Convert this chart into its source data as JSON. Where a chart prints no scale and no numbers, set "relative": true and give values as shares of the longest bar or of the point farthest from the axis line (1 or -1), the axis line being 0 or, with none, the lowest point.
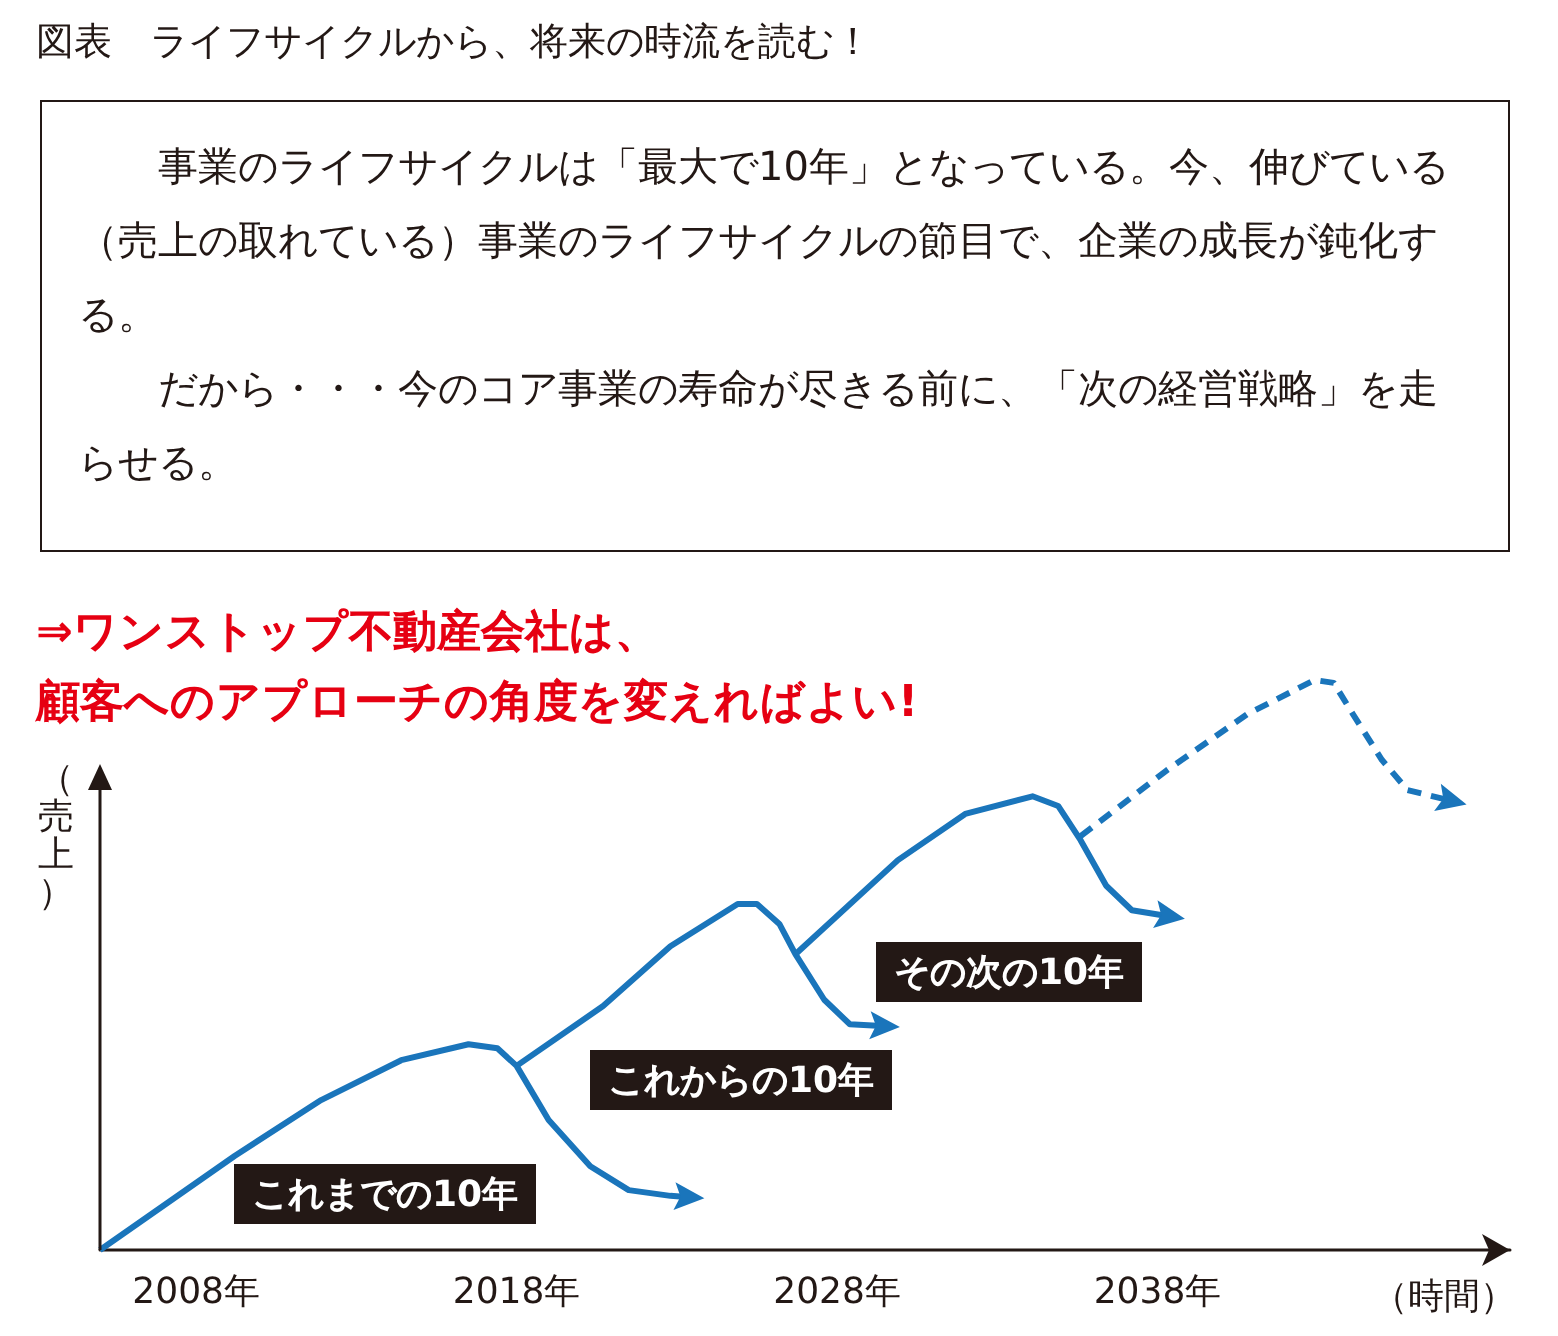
{
  "chart_data": {
    "type": "line",
    "title": "図表　ライフサイクルから、将来の時流を読む！",
    "subtitle": "事業のライフサイクルは「最大で10年」となっている。今、伸びている（売上の取れている）事業のライフサイクルの節目で、企業の成長が鈍化する。",
    "xlabel": "（時間）",
    "ylabel": "（売上）",
    "relative": true,
    "line_style": "solid",
    "xlim": [
      2005,
      2049
    ],
    "xticks": [
      {
        "value": 2008,
        "label": "2008年"
      },
      {
        "value": 2018,
        "label": "2018年"
      },
      {
        "value": 2028,
        "label": "2028年"
      },
      {
        "value": 2038,
        "label": "2038年"
      }
    ],
    "annotations": [
      "だから・・・今のコア事業の寿命が尽きる前に、「次の経営戦略」を走らせる。",
      "⇒ワンストップ不動産会社は、",
      "顧客へのアプローチの角度を変えればよい!",
      "これまでの10年",
      "これからの10年",
      "その次の10年"
    ],
    "series": [
      {
        "color": "#1a75bb",
        "x": [
          2005,
          2009.2,
          2011.9,
          2014.4,
          2016.5,
          2017.4,
          2018,
          2019,
          2020.3,
          2021.5,
          2022.8,
          2023.3
        ],
        "values": [
          0,
          0.165,
          0.263,
          0.333,
          0.361,
          0.354,
          0.323,
          0.228,
          0.147,
          0.105,
          0.095,
          0.093
        ]
      },
      {
        "color": "#1a75bb",
        "x": [
          2018,
          2020.7,
          2022.8,
          2024.9,
          2025.5,
          2026.2,
          2026.7,
          2027.6,
          2028.4,
          2029.4
        ],
        "values": [
          0.323,
          0.428,
          0.533,
          0.607,
          0.607,
          0.572,
          0.519,
          0.439,
          0.396,
          0.393
        ]
      },
      {
        "color": "#1a75bb",
        "x": [
          2026.7,
          2029.9,
          2032,
          2034.1,
          2034.9,
          2035.6,
          2036.4,
          2037.2,
          2038.3
        ],
        "values": [
          0.519,
          0.684,
          0.765,
          0.796,
          0.779,
          0.719,
          0.639,
          0.596,
          0.586
        ]
      },
      {
        "color": "#1a75bb",
        "line_style": "dashed",
        "x": [
          2035.6,
          2038.3,
          2040.8,
          2042.9,
          2043.5,
          2044.1,
          2045,
          2045.8,
          2047.1
        ],
        "values": [
          0.726,
          0.842,
          0.94,
          1,
          0.995,
          0.94,
          0.86,
          0.807,
          0.789
        ]
      }
    ]
  }
}
